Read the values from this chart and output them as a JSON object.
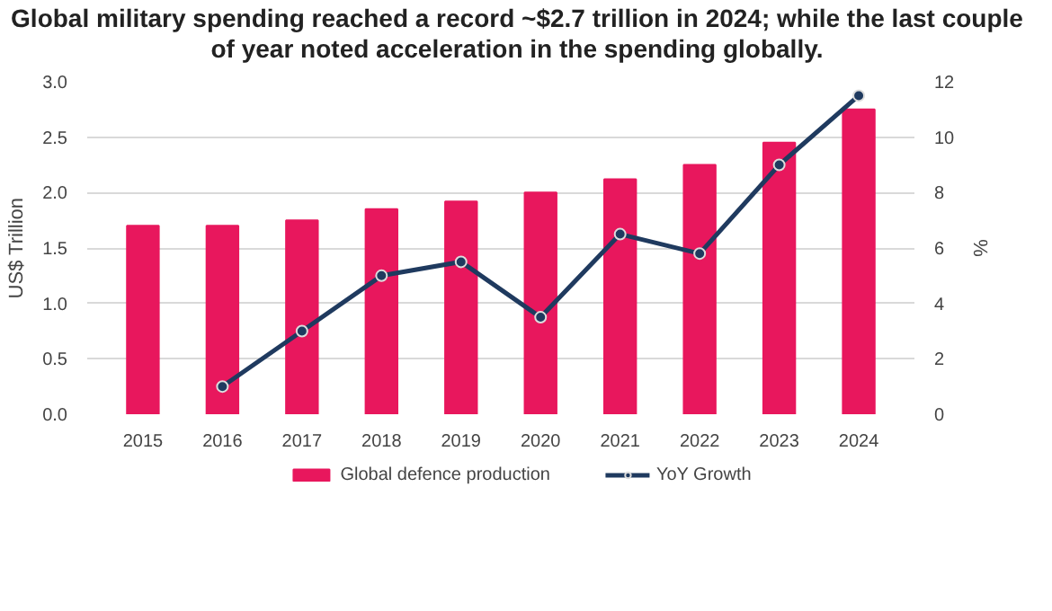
{
  "chart_data": {
    "type": "bar",
    "title": "Global military spending reached a record ~$2.7 trillion in 2024; while the last couple of year noted acceleration in the spending globally.",
    "categories": [
      "2015",
      "2016",
      "2017",
      "2018",
      "2019",
      "2020",
      "2021",
      "2022",
      "2023",
      "2024"
    ],
    "ylabel": "US$ Trillion",
    "y2label": "%",
    "ylim": [
      0,
      3
    ],
    "yticks": [
      {
        "value": 0,
        "label": "0.0"
      },
      {
        "value": 0.5,
        "label": "0.5"
      },
      {
        "value": 1,
        "label": "1.0"
      },
      {
        "value": 1.5,
        "label": "1.5"
      },
      {
        "value": 2,
        "label": "2.0"
      },
      {
        "value": 2.5,
        "label": "2.5"
      },
      {
        "value": 3,
        "label": "3.0"
      }
    ],
    "y2lim": [
      0,
      12
    ],
    "y2ticks": [
      0,
      2,
      4,
      6,
      8,
      10,
      12
    ],
    "grid": "y",
    "legend": "bottom",
    "series": [
      {
        "name": "Global defence production",
        "color": "#e8175d",
        "values": [
          1.7,
          1.7,
          1.75,
          1.85,
          1.92,
          2.0,
          2.12,
          2.25,
          2.45,
          2.75
        ]
      },
      {
        "name": "YoY Growth",
        "type": "line",
        "axis": "y2",
        "marker": "circle",
        "color": "#1f3a5f",
        "values": [
          null,
          1.0,
          3.0,
          5.0,
          5.5,
          3.5,
          6.5,
          5.8,
          9.0,
          11.5
        ]
      }
    ]
  }
}
